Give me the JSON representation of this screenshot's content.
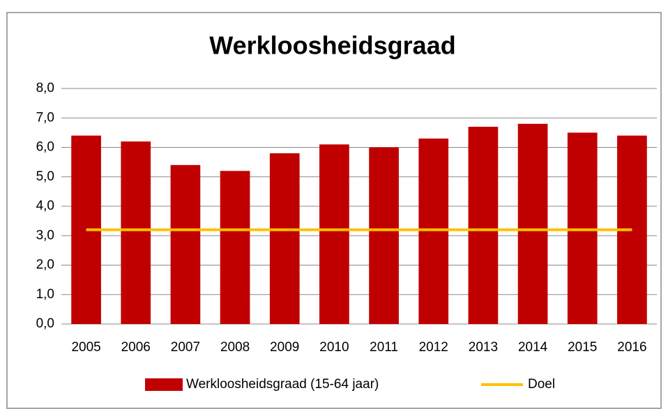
{
  "chart_data": {
    "type": "bar",
    "title": "Werkloosheidsgraad",
    "categories": [
      "2005",
      "2006",
      "2007",
      "2008",
      "2009",
      "2010",
      "2011",
      "2012",
      "2013",
      "2014",
      "2015",
      "2016"
    ],
    "series": [
      {
        "name": "Werkloosheidsgraad (15-64 jaar)",
        "type": "bar",
        "color": "#c00000",
        "values": [
          6.4,
          6.2,
          5.4,
          5.2,
          5.8,
          6.1,
          6.0,
          6.3,
          6.7,
          6.8,
          6.5,
          6.4
        ]
      },
      {
        "name": "Doel",
        "type": "line",
        "color": "#ffc000",
        "values": [
          3.2,
          3.2,
          3.2,
          3.2,
          3.2,
          3.2,
          3.2,
          3.2,
          3.2,
          3.2,
          3.2,
          3.2
        ]
      }
    ],
    "ylim": [
      0,
      8
    ],
    "yticks": [
      {
        "value": 0,
        "label": "0,0"
      },
      {
        "value": 1,
        "label": "1,0"
      },
      {
        "value": 2,
        "label": "2,0"
      },
      {
        "value": 3,
        "label": "3,0"
      },
      {
        "value": 4,
        "label": "4,0"
      },
      {
        "value": 5,
        "label": "5,0"
      },
      {
        "value": 6,
        "label": "6,0"
      },
      {
        "value": 7,
        "label": "7,0"
      },
      {
        "value": 8,
        "label": "8,0"
      }
    ],
    "grid": true,
    "legend": "bottom"
  }
}
